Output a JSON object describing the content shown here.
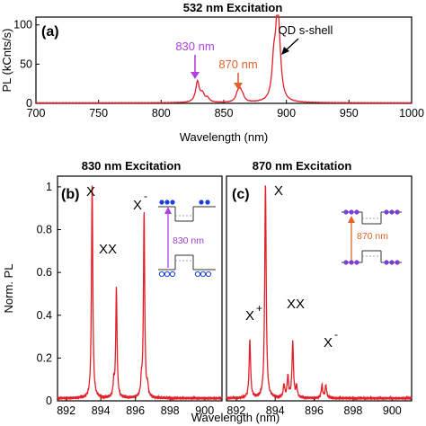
{
  "colors": {
    "spectrum": "#e3202a",
    "purple": "#b040e0",
    "orange": "#e0642a",
    "dot_blue": "#1a3fd8",
    "axis": "#000000"
  },
  "chart_data": [
    {
      "panel": "(a)",
      "type": "line",
      "title": "532 nm Excitation",
      "xlabel": "Wavelength (nm)",
      "ylabel": "PL (kCnts/s)",
      "xlim": [
        700,
        1000
      ],
      "ylim": [
        0,
        110
      ],
      "xticks": [
        "700",
        "750",
        "800",
        "850",
        "900",
        "950",
        "1000"
      ],
      "yticks": [
        "0",
        "50",
        "100"
      ],
      "peaks": [
        {
          "x": 829,
          "y": 26
        },
        {
          "x": 833,
          "y": 10
        },
        {
          "x": 837,
          "y": 5
        },
        {
          "x": 861,
          "y": 9
        },
        {
          "x": 863,
          "y": 12
        },
        {
          "x": 865,
          "y": 6
        },
        {
          "x": 890,
          "y": 45
        },
        {
          "x": 893,
          "y": 112
        },
        {
          "x": 895,
          "y": 18
        }
      ],
      "annotations": [
        {
          "text": "830 nm",
          "x": 829,
          "color": "purple"
        },
        {
          "text": "870 nm",
          "x": 862,
          "color": "orange"
        },
        {
          "text": "QD s-shell",
          "x": 894,
          "color": "black"
        }
      ]
    },
    {
      "panel": "(b)",
      "type": "line",
      "title": "830 nm Excitation",
      "xlabel": "Wavelength (nm)",
      "ylabel": "Norm. PL",
      "xlim": [
        891.5,
        901
      ],
      "ylim": [
        0,
        1.05
      ],
      "xticks": [
        "892",
        "894",
        "896",
        "898",
        "900"
      ],
      "yticks": [
        "0",
        "0.2",
        "0.4",
        "0.6",
        "0.8",
        "1"
      ],
      "peaks": [
        {
          "x": 893.5,
          "y": 1.0
        },
        {
          "x": 894.75,
          "y": 0.07
        },
        {
          "x": 894.9,
          "y": 0.51
        },
        {
          "x": 896.35,
          "y": 0.07
        },
        {
          "x": 896.5,
          "y": 0.86
        },
        {
          "x": 896.7,
          "y": 0.05
        }
      ],
      "peak_labels": [
        "X",
        "XX",
        "X"
      ],
      "inset_label": "830 nm"
    },
    {
      "panel": "(c)",
      "type": "line",
      "title": "870 nm Excitation",
      "xlabel": "Wavelength (nm)",
      "ylabel": "",
      "xlim": [
        891.5,
        901
      ],
      "ylim": [
        0,
        1.05
      ],
      "xticks": [
        "892",
        "894",
        "896",
        "898",
        "900"
      ],
      "yticks": [],
      "peaks": [
        {
          "x": 892.7,
          "y": 0.27
        },
        {
          "x": 893.5,
          "y": 1.0
        },
        {
          "x": 894.45,
          "y": 0.06
        },
        {
          "x": 894.65,
          "y": 0.1
        },
        {
          "x": 894.9,
          "y": 0.26
        },
        {
          "x": 895.1,
          "y": 0.05
        },
        {
          "x": 896.4,
          "y": 0.06
        },
        {
          "x": 896.6,
          "y": 0.06
        }
      ],
      "peak_labels": [
        "X",
        "X",
        "XX",
        "X"
      ],
      "inset_label": "870 nm"
    }
  ],
  "labels": {
    "peak_b_x": "X",
    "peak_b_xx": "XX",
    "peak_b_xminus": "X",
    "peak_c_xplus": "X",
    "peak_c_x": "X",
    "peak_c_xx": "XX",
    "peak_c_xminus": "X",
    "sup_minus": "-",
    "sup_plus": "+"
  }
}
